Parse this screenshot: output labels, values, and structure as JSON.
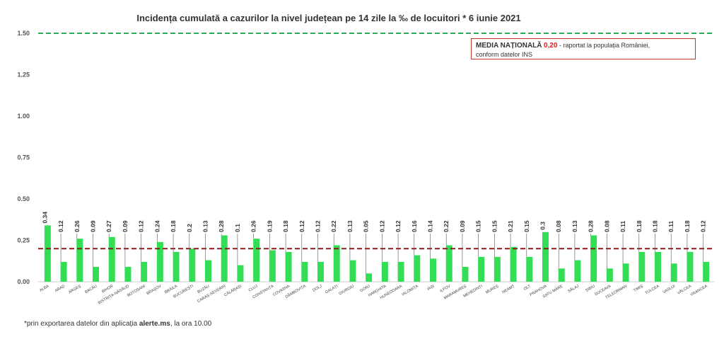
{
  "chart_data": {
    "type": "bar",
    "title": "Incidența cumulată a cazurilor la nivel județean pe 14 zile la ‰ de locuitori *  6 iunie 2021",
    "xlabel": "",
    "ylabel": "",
    "ylim": [
      0,
      1.5
    ],
    "yticks": [
      "0.00",
      "0.25",
      "0.50",
      "0.75",
      "1.00",
      "1.25",
      "1.50"
    ],
    "categories": [
      "ALBA",
      "ARAD",
      "ARGEȘ",
      "BACĂU",
      "BIHOR",
      "BISTRIȚA-NĂSĂUD",
      "BOTOȘANI",
      "BRAȘOV",
      "BRĂILA",
      "BUCUREȘTI",
      "BUZĂU",
      "CARAȘ-SEVERIN",
      "CĂLĂRAȘI",
      "CLUJ",
      "CONSTANȚA",
      "COVASNA",
      "DÂMBOVIȚA",
      "DOLJ",
      "GALAȚI",
      "GIURGIU",
      "GORJ",
      "HARGHITA",
      "HUNEDOARA",
      "IALOMIȚA",
      "IAȘI",
      "ILFOV",
      "MARAMUREȘ",
      "MEHEDINȚI",
      "MUREȘ",
      "NEAMȚ",
      "OLT",
      "PRAHOVA",
      "SATU MARE",
      "SĂLAJ",
      "SIBIU",
      "SUCEAVA",
      "TELEORMAN",
      "TIMIȘ",
      "TULCEA",
      "VASLUI",
      "VÂLCEA",
      "VRANCEA"
    ],
    "values": [
      0.34,
      0.12,
      0.26,
      0.09,
      0.27,
      0.09,
      0.12,
      0.24,
      0.18,
      0.2,
      0.13,
      0.28,
      0.1,
      0.26,
      0.19,
      0.18,
      0.12,
      0.12,
      0.22,
      0.13,
      0.05,
      0.12,
      0.12,
      0.16,
      0.14,
      0.22,
      0.09,
      0.15,
      0.15,
      0.21,
      0.15,
      0.3,
      0.08,
      0.13,
      0.28,
      0.08,
      0.11,
      0.18,
      0.18,
      0.11,
      0.18,
      0.12
    ],
    "labels": [
      "0.34",
      "0.12",
      "0.26",
      "0.09",
      "0.27",
      "0.09",
      "0.12",
      "0.24",
      "0.18",
      "0.2",
      "0.13",
      "0.28",
      "0.1",
      "0.26",
      "0.19",
      "0.18",
      "0.12",
      "0.12",
      "0.22",
      "0.13",
      "0.05",
      "0.12",
      "0.12",
      "0.16",
      "0.14",
      "0.22",
      "0.09",
      "0.15",
      "0.15",
      "0.21",
      "0.15",
      "0.3",
      "0.08",
      "0.13",
      "0.28",
      "0.08",
      "0.11",
      "0.18",
      "0.18",
      "0.11",
      "0.18",
      "0.12"
    ],
    "reference_lines": [
      {
        "value": 1.5,
        "color": "#2eaa5a",
        "style": "dashed"
      },
      {
        "value": 0.2,
        "color": "#8b1a1a",
        "style": "dashed"
      }
    ],
    "bar_color": "#33dd55",
    "legend": {
      "placement": "top-right",
      "bold_text": "MEDIA NAȚIONALĂ",
      "value": "0,20",
      "rest_line1": " - raportat la populația României,",
      "line2": "conform datelor INS"
    }
  },
  "footnote": {
    "prefix": "*prin exportarea datelor din aplicația ",
    "app": "alerte.ms",
    "suffix": ", la ora 10.00"
  }
}
